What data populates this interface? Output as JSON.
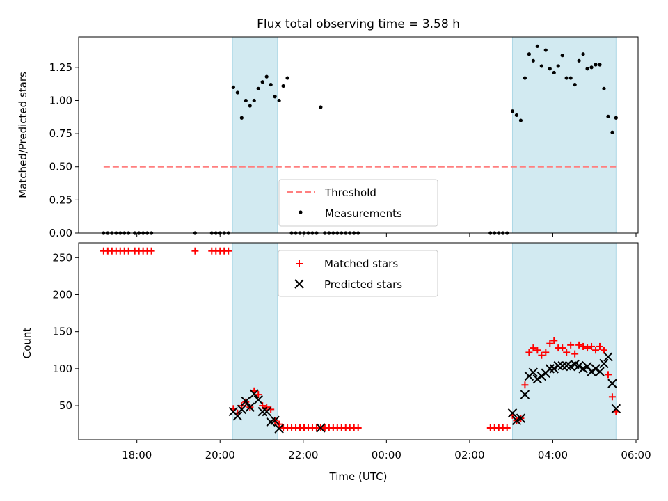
{
  "chart_data": [
    {
      "type": "scatter",
      "title": "Flux total observing time = 3.58 h",
      "ylabel": "Matched/Predicted stars",
      "xlabel": "",
      "x_unit": "hours since 00:00 UTC (negative = previous day)",
      "xlim": [
        -7.4,
        6.05
      ],
      "ylim": [
        0,
        1.48
      ],
      "yticks": [
        0.0,
        0.25,
        0.5,
        0.75,
        1.0,
        1.25
      ],
      "ytick_labels": [
        "0.00",
        "0.25",
        "0.50",
        "0.75",
        "1.00",
        "1.25"
      ],
      "grid": false,
      "legend_placement": "bottom-center",
      "shaded_intervals": [
        [
          -3.7,
          -2.62
        ],
        [
          3.03,
          5.52
        ]
      ],
      "shade_color": "#add8e6",
      "threshold": {
        "name": "Threshold",
        "value": 0.5,
        "x_range": [
          -6.8,
          5.52
        ],
        "color": "#ff7f7f"
      },
      "series": [
        {
          "name": "Measurements",
          "color": "#000000",
          "x": [
            -6.8,
            -6.7,
            -6.6,
            -6.5,
            -6.4,
            -6.3,
            -6.2,
            -6.05,
            -5.95,
            -5.85,
            -5.75,
            -5.65,
            -4.6,
            -4.2,
            -4.1,
            -4.0,
            -3.9,
            -3.8,
            -3.68,
            -3.58,
            -3.48,
            -3.38,
            -3.28,
            -3.18,
            -3.08,
            -2.98,
            -2.88,
            -2.78,
            -2.68,
            -2.58,
            -2.48,
            -2.38,
            -2.28,
            -2.18,
            -2.08,
            -1.98,
            -1.88,
            -1.78,
            -1.68,
            -1.58,
            -1.48,
            -1.38,
            -1.28,
            -1.18,
            -1.08,
            -0.98,
            -0.88,
            -0.78,
            -0.68,
            2.5,
            2.6,
            2.7,
            2.8,
            2.9,
            3.03,
            3.13,
            3.23,
            3.33,
            3.43,
            3.53,
            3.63,
            3.73,
            3.83,
            3.93,
            4.03,
            4.13,
            4.23,
            4.33,
            4.43,
            4.53,
            4.63,
            4.73,
            4.83,
            4.93,
            5.03,
            5.13,
            5.23,
            5.33,
            5.43,
            5.52
          ],
          "y": [
            0,
            0,
            0,
            0,
            0,
            0,
            0,
            0,
            0,
            0,
            0,
            0,
            0,
            0,
            0,
            0,
            0,
            0,
            1.1,
            1.06,
            0.87,
            1.0,
            0.96,
            1.0,
            1.09,
            1.14,
            1.18,
            1.12,
            1.03,
            1.0,
            1.11,
            1.17,
            0,
            0,
            0,
            0,
            0,
            0,
            0,
            0.95,
            0,
            0,
            0,
            0,
            0,
            0,
            0,
            0,
            0,
            0,
            0,
            0,
            0,
            0,
            0.92,
            0.89,
            0.85,
            1.17,
            1.35,
            1.3,
            1.41,
            1.26,
            1.38,
            1.24,
            1.21,
            1.26,
            1.34,
            1.17,
            1.17,
            1.12,
            1.3,
            1.35,
            1.24,
            1.25,
            1.27,
            1.27,
            1.09,
            0.88,
            0.76,
            0.87
          ]
        }
      ]
    },
    {
      "type": "scatter",
      "title": "",
      "ylabel": "Count",
      "xlabel": "Time (UTC)",
      "xlim": [
        -7.4,
        6.05
      ],
      "ylim": [
        4,
        270
      ],
      "yticks": [
        50,
        100,
        150,
        200,
        250
      ],
      "xticks": [
        -6,
        -4,
        -2,
        0,
        2,
        4,
        6
      ],
      "xtick_labels": [
        "18:00",
        "20:00",
        "22:00",
        "00:00",
        "02:00",
        "04:00",
        "06:00"
      ],
      "grid": false,
      "legend_placement": "top-center",
      "shaded_intervals": [
        [
          -3.7,
          -2.62
        ],
        [
          3.03,
          5.52
        ]
      ],
      "shade_color": "#add8e6",
      "series": [
        {
          "name": "Matched stars",
          "color": "#ff0000",
          "marker": "plus",
          "x": [
            -6.8,
            -6.7,
            -6.6,
            -6.5,
            -6.4,
            -6.3,
            -6.2,
            -6.05,
            -5.95,
            -5.85,
            -5.75,
            -5.65,
            -4.6,
            -4.2,
            -4.1,
            -4.0,
            -3.9,
            -3.8,
            -3.68,
            -3.58,
            -3.48,
            -3.38,
            -3.28,
            -3.18,
            -3.08,
            -2.98,
            -2.88,
            -2.78,
            -2.68,
            -2.58,
            -2.48,
            -2.38,
            -2.28,
            -2.18,
            -2.08,
            -1.98,
            -1.88,
            -1.78,
            -1.68,
            -1.58,
            -1.48,
            -1.38,
            -1.28,
            -1.18,
            -1.08,
            -0.98,
            -0.88,
            -0.78,
            -0.68,
            2.5,
            2.6,
            2.7,
            2.8,
            2.9,
            3.03,
            3.13,
            3.23,
            3.33,
            3.43,
            3.53,
            3.63,
            3.73,
            3.83,
            3.93,
            4.03,
            4.13,
            4.23,
            4.33,
            4.43,
            4.53,
            4.63,
            4.73,
            4.83,
            4.93,
            5.03,
            5.13,
            5.23,
            5.33,
            5.43,
            5.52
          ],
          "y": [
            259,
            259,
            259,
            259,
            259,
            259,
            259,
            259,
            259,
            259,
            259,
            259,
            259,
            259,
            259,
            259,
            259,
            259,
            46,
            40,
            50,
            55,
            48,
            70,
            65,
            50,
            48,
            45,
            30,
            25,
            20,
            20,
            20,
            20,
            20,
            20,
            20,
            20,
            20,
            20,
            20,
            20,
            20,
            20,
            20,
            20,
            20,
            20,
            20,
            20,
            20,
            20,
            20,
            20,
            37,
            30,
            33,
            78,
            122,
            128,
            125,
            118,
            122,
            134,
            138,
            128,
            128,
            122,
            132,
            120,
            132,
            130,
            128,
            130,
            125,
            130,
            125,
            92,
            62,
            42
          ]
        },
        {
          "name": "Predicted stars",
          "color": "#000000",
          "marker": "x",
          "x": [
            -3.68,
            -3.58,
            -3.48,
            -3.38,
            -3.28,
            -3.18,
            -3.08,
            -2.98,
            -2.88,
            -2.78,
            -2.68,
            -2.58,
            -1.58,
            3.03,
            3.13,
            3.23,
            3.33,
            3.43,
            3.53,
            3.63,
            3.73,
            3.83,
            3.93,
            4.03,
            4.13,
            4.23,
            4.33,
            4.43,
            4.53,
            4.63,
            4.73,
            4.83,
            4.93,
            5.03,
            5.13,
            5.23,
            5.33,
            5.43,
            5.52
          ],
          "y": [
            42,
            36,
            45,
            56,
            48,
            66,
            58,
            42,
            42,
            28,
            30,
            19,
            20,
            40,
            30,
            33,
            65,
            90,
            95,
            86,
            90,
            94,
            100,
            100,
            104,
            104,
            104,
            103,
            106,
            104,
            100,
            103,
            96,
            100,
            96,
            107,
            116,
            80,
            46
          ]
        }
      ]
    }
  ]
}
